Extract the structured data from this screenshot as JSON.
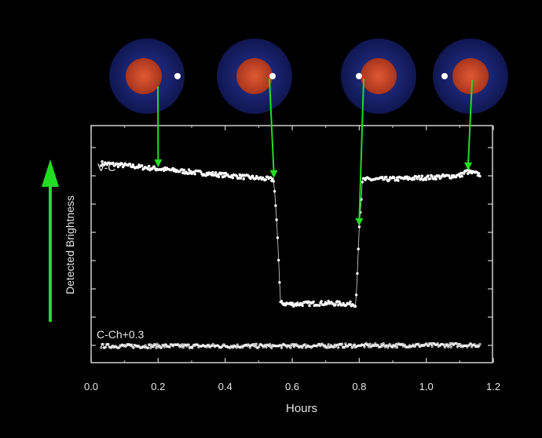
{
  "chart_data": {
    "type": "scatter",
    "xlabel": "Hours",
    "ylabel": "Detected Brightness",
    "xlim": [
      0.0,
      1.2
    ],
    "x_ticks": [
      "0.0",
      "0.2",
      "0.4",
      "0.6",
      "0.8",
      "1.0",
      "1.2"
    ],
    "x_tick_values": [
      0.0,
      0.2,
      0.4,
      0.6,
      0.8,
      1.0,
      1.2
    ],
    "ylim": [
      0,
      1
    ],
    "grid": false,
    "series": [
      {
        "name": "V-C",
        "points": [
          [
            0.03,
            0.915
          ],
          [
            0.1,
            0.905
          ],
          [
            0.2,
            0.888
          ],
          [
            0.3,
            0.872
          ],
          [
            0.4,
            0.857
          ],
          [
            0.5,
            0.842
          ],
          [
            0.545,
            0.835
          ],
          [
            0.555,
            0.6
          ],
          [
            0.565,
            0.23
          ],
          [
            0.6,
            0.225
          ],
          [
            0.7,
            0.23
          ],
          [
            0.79,
            0.225
          ],
          [
            0.8,
            0.6
          ],
          [
            0.81,
            0.835
          ],
          [
            0.9,
            0.838
          ],
          [
            1.0,
            0.845
          ],
          [
            1.1,
            0.855
          ],
          [
            1.12,
            0.875
          ],
          [
            1.16,
            0.86
          ]
        ]
      },
      {
        "name": "C-Ch+0.3",
        "points": [
          [
            0.03,
            0.02
          ],
          [
            0.6,
            0.02
          ],
          [
            1.16,
            0.025
          ]
        ]
      }
    ],
    "annotations": {
      "phase_x": [
        0.2,
        0.545,
        0.8,
        1.125
      ],
      "star_color": "#c84a2a",
      "halo_color": "#1a2470",
      "arrow_color": "#22dd22"
    }
  }
}
